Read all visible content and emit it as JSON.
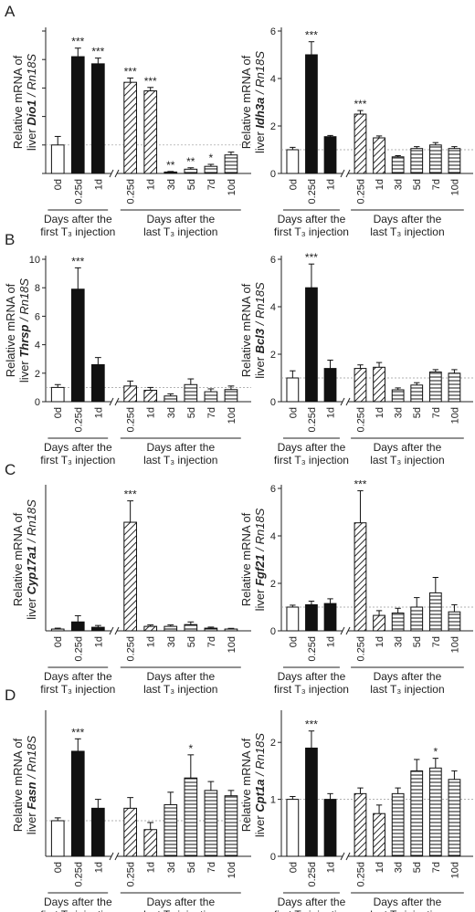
{
  "panel_letters": [
    "A",
    "B",
    "C",
    "D"
  ],
  "group_labels": {
    "first_line1": "Days after the",
    "first_line2": "first T₃ injection",
    "last_line1": "Days after the",
    "last_line2": "last T₃ injection"
  },
  "ylabel_prefix_line1": "Relative mRNA of",
  "ylabel_prefix_line2": "liver",
  "ylabel_suffix": "/ Rn18S",
  "chart_data": [
    {
      "panel": "A",
      "gene": "Dio1",
      "type": "bar",
      "categories": [
        "0d",
        "0.25d",
        "1d",
        "0.25d",
        "1d",
        "3d",
        "5d",
        "7d",
        "10d"
      ],
      "values": [
        1.0,
        4.1,
        3.85,
        3.2,
        2.9,
        0.05,
        0.15,
        0.25,
        0.65
      ],
      "errors": [
        0.3,
        0.3,
        0.2,
        0.15,
        0.12,
        0.02,
        0.05,
        0.07,
        0.1
      ],
      "significance": [
        "",
        "***",
        "***",
        "***",
        "***",
        "**",
        "**",
        "*",
        ""
      ],
      "ylim": [
        0,
        5
      ],
      "yticks": [
        0,
        1,
        2,
        3,
        4,
        5
      ],
      "show_tick_labels": false,
      "fills": [
        "open",
        "solid",
        "solid",
        "diag",
        "diag",
        "horiz",
        "horiz",
        "horiz",
        "horiz"
      ],
      "reference_line": 1
    },
    {
      "panel": "A",
      "gene": "Idh3a",
      "type": "bar",
      "categories": [
        "0d",
        "0.25d",
        "1d",
        "0.25d",
        "1d",
        "3d",
        "5d",
        "7d",
        "10d"
      ],
      "values": [
        1.0,
        5.0,
        1.55,
        2.5,
        1.5,
        0.7,
        1.05,
        1.2,
        1.05
      ],
      "errors": [
        0.1,
        0.55,
        0.05,
        0.15,
        0.08,
        0.05,
        0.08,
        0.1,
        0.08
      ],
      "significance": [
        "",
        "***",
        "",
        "***",
        "",
        "",
        "",
        "",
        ""
      ],
      "ylim": [
        0,
        6
      ],
      "yticks": [
        0,
        2,
        4,
        6
      ],
      "show_tick_labels": true,
      "fills": [
        "open",
        "solid",
        "solid",
        "diag",
        "diag",
        "horiz",
        "horiz",
        "horiz",
        "horiz"
      ],
      "reference_line": 1
    },
    {
      "panel": "B",
      "gene": "Thrsp",
      "type": "bar",
      "categories": [
        "0d",
        "0.25d",
        "1d",
        "0.25d",
        "1d",
        "3d",
        "5d",
        "7d",
        "10d"
      ],
      "values": [
        1.0,
        7.9,
        2.6,
        1.1,
        0.8,
        0.4,
        1.2,
        0.7,
        0.85
      ],
      "errors": [
        0.2,
        1.5,
        0.5,
        0.35,
        0.2,
        0.15,
        0.4,
        0.2,
        0.25
      ],
      "significance": [
        "",
        "***",
        "",
        "",
        "",
        "",
        "",
        "",
        ""
      ],
      "ylim": [
        0,
        10
      ],
      "yticks": [
        0,
        2,
        4,
        6,
        8,
        10
      ],
      "show_tick_labels": true,
      "fills": [
        "open",
        "solid",
        "solid",
        "diag",
        "diag",
        "horiz",
        "horiz",
        "horiz",
        "horiz"
      ],
      "reference_line": 1
    },
    {
      "panel": "B",
      "gene": "Bcl3",
      "type": "bar",
      "categories": [
        "0d",
        "0.25d",
        "1d",
        "0.25d",
        "1d",
        "3d",
        "5d",
        "7d",
        "10d"
      ],
      "values": [
        1.0,
        4.8,
        1.4,
        1.4,
        1.45,
        0.5,
        0.7,
        1.25,
        1.2
      ],
      "errors": [
        0.3,
        1.0,
        0.35,
        0.15,
        0.2,
        0.08,
        0.1,
        0.1,
        0.15
      ],
      "significance": [
        "",
        "***",
        "",
        "",
        "",
        "",
        "",
        "",
        ""
      ],
      "ylim": [
        0,
        6
      ],
      "yticks": [
        0,
        2,
        4,
        6
      ],
      "show_tick_labels": true,
      "fills": [
        "open",
        "solid",
        "solid",
        "diag",
        "diag",
        "horiz",
        "horiz",
        "horiz",
        "horiz"
      ],
      "reference_line": 1
    },
    {
      "panel": "C",
      "gene": "Cyp17a1",
      "type": "bar",
      "categories": [
        "0d",
        "0.25d",
        "1d",
        "0.25d",
        "1d",
        "3d",
        "5d",
        "7d",
        "10d"
      ],
      "values": [
        1.0,
        5.0,
        2.0,
        61.0,
        2.5,
        2.5,
        3.5,
        1.5,
        1.0
      ],
      "errors": [
        0.5,
        3.5,
        1.0,
        12.0,
        0.8,
        0.8,
        1.5,
        0.6,
        0.4
      ],
      "significance": [
        "",
        "",
        "",
        "***",
        "",
        "",
        "",
        "",
        ""
      ],
      "ylim": [
        0,
        80
      ],
      "yticks": [],
      "show_tick_labels": false,
      "fills": [
        "open",
        "solid",
        "solid",
        "diag",
        "diag",
        "horiz",
        "horiz",
        "horiz",
        "horiz"
      ],
      "reference_line": null
    },
    {
      "panel": "C",
      "gene": "Fgf21",
      "type": "bar",
      "categories": [
        "0d",
        "0.25d",
        "1d",
        "0.25d",
        "1d",
        "3d",
        "5d",
        "7d",
        "10d"
      ],
      "values": [
        1.0,
        1.1,
        1.15,
        4.55,
        0.65,
        0.75,
        1.0,
        1.6,
        0.8
      ],
      "errors": [
        0.08,
        0.15,
        0.2,
        1.35,
        0.2,
        0.2,
        0.4,
        0.65,
        0.3
      ],
      "significance": [
        "",
        "",
        "",
        "***",
        "",
        "",
        "",
        "",
        ""
      ],
      "ylim": [
        0,
        6
      ],
      "yticks": [
        0,
        2,
        4,
        6
      ],
      "show_tick_labels": true,
      "fills": [
        "open",
        "solid",
        "solid",
        "diag",
        "diag",
        "horiz",
        "horiz",
        "horiz",
        "horiz"
      ],
      "reference_line": 1
    },
    {
      "panel": "D",
      "gene": "Fasn",
      "type": "bar",
      "categories": [
        "0d",
        "0.25d",
        "1d",
        "0.25d",
        "1d",
        "3d",
        "5d",
        "7d",
        "10d"
      ],
      "values": [
        1.0,
        2.95,
        1.35,
        1.35,
        0.75,
        1.45,
        2.2,
        1.85,
        1.7
      ],
      "errors": [
        0.08,
        0.35,
        0.25,
        0.3,
        0.2,
        0.35,
        0.65,
        0.25,
        0.15
      ],
      "significance": [
        "",
        "***",
        "",
        "",
        "",
        "",
        "*",
        "",
        ""
      ],
      "ylim": [
        0,
        4
      ],
      "yticks": [],
      "show_tick_labels": false,
      "fills": [
        "open",
        "solid",
        "solid",
        "diag",
        "diag",
        "horiz",
        "horiz",
        "horiz",
        "horiz"
      ],
      "reference_line": 1
    },
    {
      "panel": "D",
      "gene": "Cpt1a",
      "type": "bar",
      "categories": [
        "0d",
        "0.25d",
        "1d",
        "0.25d",
        "1d",
        "3d",
        "5d",
        "7d",
        "10d"
      ],
      "values": [
        1.0,
        1.9,
        1.0,
        1.1,
        0.75,
        1.1,
        1.5,
        1.55,
        1.35
      ],
      "errors": [
        0.05,
        0.3,
        0.1,
        0.1,
        0.15,
        0.1,
        0.2,
        0.17,
        0.15
      ],
      "significance": [
        "",
        "***",
        "",
        "",
        "",
        "",
        "",
        "*",
        ""
      ],
      "ylim": [
        0,
        2.5
      ],
      "yticks": [
        0,
        1,
        2
      ],
      "show_tick_labels": true,
      "fills": [
        "open",
        "solid",
        "solid",
        "diag",
        "diag",
        "horiz",
        "horiz",
        "horiz",
        "horiz"
      ],
      "reference_line": 1
    }
  ]
}
